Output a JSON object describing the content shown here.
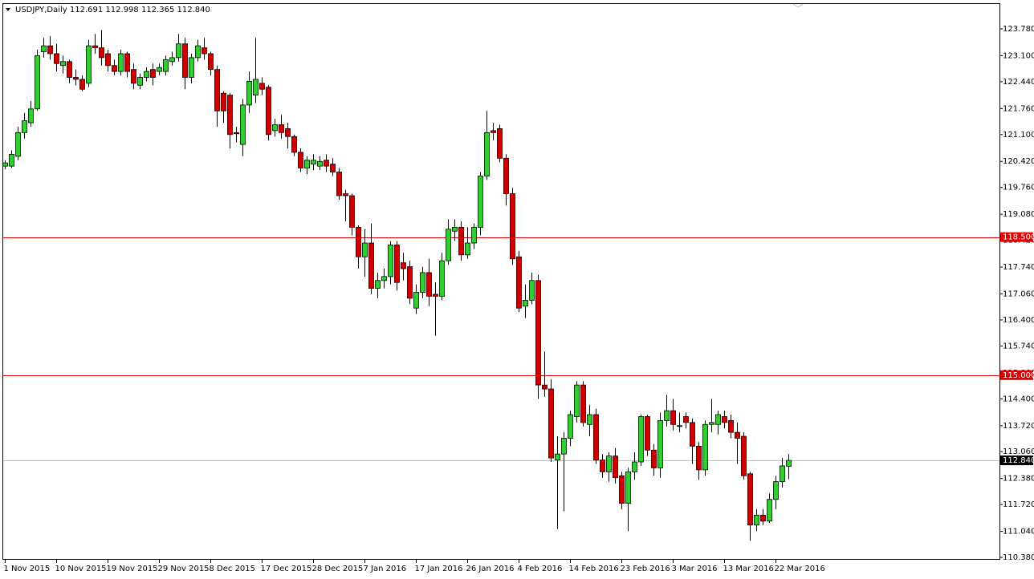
{
  "chart_data": {
    "type": "candlestick",
    "title": "USDJPY,Daily  112.691 112.998 112.365 112.840",
    "up_color": "#33cc33",
    "down_color": "#cc0000",
    "categories": [
      "1 Nov 2015",
      null,
      null,
      null,
      null,
      null,
      null,
      null,
      "10 Nov 2015",
      null,
      null,
      null,
      null,
      null,
      null,
      null,
      "19 Nov 2015",
      null,
      null,
      null,
      null,
      null,
      null,
      null,
      "29 Nov 2015",
      null,
      null,
      null,
      null,
      null,
      null,
      null,
      "8 Dec 2015",
      null,
      null,
      null,
      null,
      null,
      null,
      null,
      "17 Dec 2015",
      null,
      null,
      null,
      null,
      null,
      null,
      null,
      "28 Dec 2015",
      null,
      null,
      null,
      null,
      null,
      null,
      null,
      "7 Jan 2016",
      null,
      null,
      null,
      null,
      null,
      null,
      null,
      "17 Jan 2016",
      null,
      null,
      null,
      null,
      null,
      null,
      null,
      "26 Jan 2016",
      null,
      null,
      null,
      null,
      null,
      null,
      null,
      "4 Feb 2016",
      null,
      null,
      null,
      null,
      null,
      null,
      null,
      "14 Feb 2016",
      null,
      null,
      null,
      null,
      null,
      null,
      null,
      "23 Feb 2016",
      null,
      null,
      null,
      null,
      null,
      null,
      null,
      "3 Mar 2016",
      null,
      null,
      null,
      null,
      null,
      null,
      null,
      "13 Mar 2016",
      null,
      null,
      null,
      null,
      null,
      null,
      null,
      "22 Mar 2016",
      null,
      null
    ],
    "open": [
      120.3,
      120.3,
      120.55,
      121.15,
      121.4,
      121.75,
      123.2,
      123.35,
      123.15,
      122.85,
      122.95,
      122.55,
      122.5,
      122.4,
      123.35,
      123.3,
      123.15,
      122.85,
      122.7,
      123.15,
      122.75,
      122.35,
      122.55,
      122.75,
      122.7,
      122.7,
      122.95,
      123.05,
      123.4,
      122.55,
      123.05,
      123.3,
      123.15,
      122.75,
      122.15,
      122.1,
      121.15,
      120.85,
      121.85,
      122.1,
      122.4,
      122.3,
      121.2,
      121.35,
      121.25,
      121.05,
      120.65,
      120.25,
      120.35,
      120.3,
      120.45,
      120.35,
      120.15,
      119.6,
      119.55,
      118.75,
      118.0,
      118.35,
      117.2,
      117.4,
      117.5,
      118.3,
      117.85,
      117.75,
      116.7,
      117.1,
      117.6,
      117.05,
      117.0,
      117.9,
      118.65,
      118.75,
      118.05,
      118.35,
      118.75,
      120.05,
      121.2,
      121.25,
      120.5,
      119.6,
      118.0,
      116.75,
      116.9,
      117.4,
      114.75,
      114.65,
      112.85,
      113.0,
      113.4,
      113.95,
      114.75,
      113.75,
      114.0,
      112.85,
      112.55,
      112.95,
      112.45,
      111.75,
      112.55,
      112.8,
      113.95,
      113.1,
      112.65,
      113.85,
      114.1,
      113.72,
      113.95,
      113.8,
      113.2,
      112.6,
      113.75,
      113.75,
      113.95,
      113.85,
      113.55,
      113.45,
      112.5,
      111.2,
      111.45,
      111.3,
      111.85,
      112.3,
      112.691
    ],
    "high": [
      120.45,
      120.7,
      121.3,
      121.65,
      121.95,
      123.25,
      123.55,
      123.6,
      123.4,
      123.1,
      123.0,
      122.75,
      122.6,
      123.5,
      123.65,
      123.75,
      123.25,
      123.0,
      123.25,
      123.2,
      122.9,
      122.65,
      122.8,
      122.9,
      122.9,
      123.1,
      123.2,
      123.65,
      123.55,
      123.15,
      123.5,
      123.55,
      123.2,
      122.85,
      122.2,
      122.15,
      121.3,
      122.0,
      122.7,
      123.55,
      122.55,
      122.35,
      121.5,
      121.6,
      121.4,
      121.1,
      120.75,
      120.55,
      120.6,
      120.55,
      120.6,
      120.5,
      120.25,
      119.7,
      119.6,
      118.8,
      118.7,
      118.85,
      117.6,
      117.7,
      118.4,
      118.4,
      118.1,
      117.9,
      117.3,
      117.75,
      117.95,
      117.35,
      118.1,
      118.95,
      118.95,
      118.9,
      118.75,
      118.85,
      120.15,
      121.7,
      121.4,
      121.35,
      120.6,
      119.75,
      118.15,
      117.3,
      117.6,
      117.55,
      115.6,
      114.9,
      113.45,
      113.55,
      114.1,
      114.85,
      114.85,
      114.25,
      114.15,
      113.0,
      113.05,
      113.15,
      112.55,
      112.65,
      113.05,
      114.0,
      114.0,
      113.25,
      114.05,
      114.5,
      114.4,
      114.05,
      114.05,
      113.9,
      113.3,
      113.85,
      114.4,
      114.1,
      114.1,
      114.0,
      113.8,
      113.55,
      112.55,
      111.6,
      111.6,
      112.0,
      112.45,
      112.9,
      112.998
    ],
    "low": [
      120.22,
      120.25,
      120.45,
      121.0,
      121.3,
      121.7,
      123.05,
      123.0,
      122.7,
      122.65,
      122.4,
      122.35,
      122.2,
      122.3,
      123.15,
      122.85,
      122.7,
      122.6,
      122.6,
      122.55,
      122.25,
      122.25,
      122.45,
      122.35,
      122.6,
      122.6,
      122.85,
      122.95,
      122.25,
      122.4,
      122.95,
      123.0,
      122.6,
      121.3,
      121.4,
      120.75,
      120.9,
      120.55,
      121.65,
      121.9,
      122.1,
      120.95,
      121.05,
      121.0,
      120.75,
      120.55,
      120.15,
      120.1,
      120.2,
      120.2,
      120.15,
      120.05,
      119.45,
      118.9,
      118.55,
      117.7,
      117.5,
      117.05,
      116.95,
      117.2,
      117.3,
      117.15,
      117.4,
      116.8,
      116.55,
      116.95,
      116.75,
      116.0,
      116.9,
      117.8,
      118.4,
      117.9,
      117.95,
      118.2,
      118.55,
      119.95,
      120.95,
      120.4,
      119.3,
      117.8,
      116.6,
      116.45,
      116.8,
      114.4,
      114.45,
      112.8,
      111.1,
      111.55,
      113.2,
      113.8,
      113.7,
      113.45,
      112.75,
      112.4,
      112.3,
      112.25,
      111.6,
      111.05,
      112.35,
      112.7,
      112.95,
      112.45,
      112.4,
      113.7,
      113.6,
      113.55,
      113.65,
      112.75,
      112.35,
      112.45,
      113.55,
      113.5,
      113.65,
      113.4,
      112.75,
      112.35,
      110.8,
      111.05,
      111.2,
      111.25,
      111.6,
      112.15,
      112.365
    ],
    "close": [
      120.38,
      120.6,
      121.15,
      121.45,
      121.75,
      123.1,
      123.35,
      123.15,
      122.9,
      122.95,
      122.55,
      122.5,
      122.25,
      123.35,
      123.3,
      123.05,
      122.85,
      122.7,
      123.15,
      122.7,
      122.4,
      122.55,
      122.7,
      122.55,
      122.8,
      123.0,
      123.05,
      123.4,
      122.55,
      123.05,
      123.35,
      123.15,
      122.75,
      121.7,
      121.7,
      121.1,
      121.12,
      121.85,
      122.45,
      122.5,
      122.25,
      121.1,
      121.35,
      121.15,
      121.05,
      120.65,
      120.25,
      120.45,
      120.45,
      120.42,
      120.3,
      120.15,
      119.55,
      119.55,
      118.75,
      118.0,
      118.35,
      117.2,
      117.4,
      117.5,
      118.3,
      117.35,
      117.7,
      116.95,
      117.1,
      117.6,
      117.0,
      117.0,
      117.9,
      118.7,
      118.75,
      118.05,
      118.35,
      118.75,
      120.05,
      121.15,
      121.15,
      120.5,
      119.6,
      117.95,
      116.7,
      116.9,
      117.4,
      114.75,
      114.65,
      112.9,
      113.0,
      113.4,
      114.0,
      114.75,
      113.8,
      114.0,
      112.85,
      112.55,
      112.95,
      112.4,
      111.75,
      112.55,
      112.8,
      113.95,
      113.1,
      112.65,
      113.85,
      114.1,
      113.75,
      113.7,
      113.8,
      113.2,
      112.6,
      113.75,
      113.8,
      114.0,
      113.8,
      113.55,
      113.4,
      112.45,
      111.2,
      111.45,
      111.3,
      111.85,
      112.3,
      112.7,
      112.84
    ],
    "ylim": [
      110.32,
      124.41
    ],
    "yticks": [
      {
        "value": 123.78,
        "label": "123.780"
      },
      {
        "value": 123.1,
        "label": "123.100"
      },
      {
        "value": 122.44,
        "label": "122.440"
      },
      {
        "value": 121.76,
        "label": "121.760"
      },
      {
        "value": 121.1,
        "label": "121.100"
      },
      {
        "value": 120.42,
        "label": "120.420"
      },
      {
        "value": 119.76,
        "label": "119.760"
      },
      {
        "value": 119.08,
        "label": "119.080"
      },
      {
        "value": 118.42,
        "label": "118.420"
      },
      {
        "value": 117.74,
        "label": "117.740"
      },
      {
        "value": 117.06,
        "label": "117.060"
      },
      {
        "value": 116.4,
        "label": "116.400"
      },
      {
        "value": 115.74,
        "label": "115.740"
      },
      {
        "value": 115.06,
        "label": "115.060"
      },
      {
        "value": 114.4,
        "label": "114.400"
      },
      {
        "value": 113.72,
        "label": "113.720"
      },
      {
        "value": 113.06,
        "label": "113.060"
      },
      {
        "value": 112.38,
        "label": "112.380"
      },
      {
        "value": 111.72,
        "label": "111.720"
      },
      {
        "value": 111.04,
        "label": "111.040"
      },
      {
        "value": 110.38,
        "label": "110.380"
      }
    ],
    "hlines": [
      {
        "value": 118.5,
        "label": "118.500",
        "color": "#e00000",
        "box_color": "#e00000"
      },
      {
        "value": 115,
        "label": "115.000",
        "color": "#e00000",
        "box_color": "#e00000"
      },
      {
        "value": 112.84,
        "label": "112.840",
        "color": "#c0c0c0",
        "box_color": "#000000"
      }
    ]
  }
}
